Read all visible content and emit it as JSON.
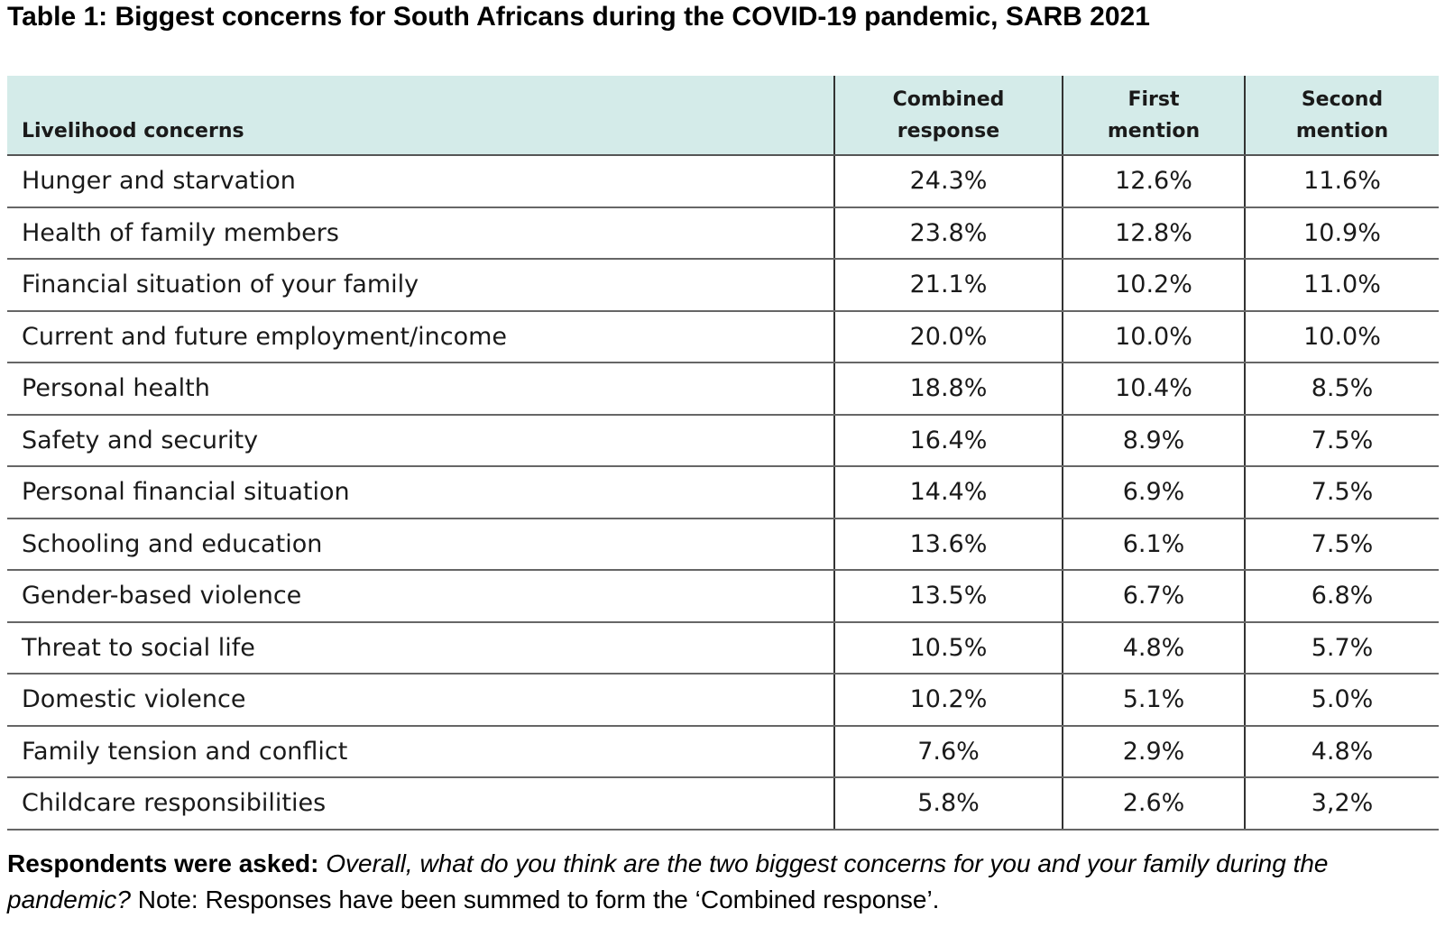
{
  "title": "Table 1: Biggest concerns for South Africans during the COVID-19 pandemic, SARB 2021",
  "table": {
    "headers": [
      {
        "line1": "",
        "line2": "Livelihood concerns"
      },
      {
        "line1": "Combined",
        "line2": "response"
      },
      {
        "line1": "First",
        "line2": "mention"
      },
      {
        "line1": "Second",
        "line2": "mention"
      }
    ],
    "rows": [
      {
        "concern": "Hunger and starvation",
        "combined": "24.3%",
        "first": "12.6%",
        "second": "11.6%"
      },
      {
        "concern": "Health of family members",
        "combined": "23.8%",
        "first": "12.8%",
        "second": "10.9%"
      },
      {
        "concern": "Financial situation of your family",
        "combined": "21.1%",
        "first": "10.2%",
        "second": "11.0%"
      },
      {
        "concern": "Current and future employment/income",
        "combined": "20.0%",
        "first": "10.0%",
        "second": "10.0%"
      },
      {
        "concern": "Personal health",
        "combined": "18.8%",
        "first": "10.4%",
        "second": "8.5%"
      },
      {
        "concern": "Safety and security",
        "combined": "16.4%",
        "first": "8.9%",
        "second": "7.5%"
      },
      {
        "concern": "Personal financial situation",
        "combined": "14.4%",
        "first": "6.9%",
        "second": "7.5%"
      },
      {
        "concern": "Schooling and education",
        "combined": "13.6%",
        "first": "6.1%",
        "second": "7.5%"
      },
      {
        "concern": "Gender-based violence",
        "combined": "13.5%",
        "first": "6.7%",
        "second": "6.8%"
      },
      {
        "concern": "Threat to social life",
        "combined": "10.5%",
        "first": "4.8%",
        "second": "5.7%"
      },
      {
        "concern": "Domestic violence",
        "combined": "10.2%",
        "first": "5.1%",
        "second": "5.0%"
      },
      {
        "concern": "Family tension and conflict",
        "combined": "7.6%",
        "first": "2.9%",
        "second": "4.8%"
      },
      {
        "concern": "Childcare responsibilities",
        "combined": "5.8%",
        "first": "2.6%",
        "second": "3,2%"
      }
    ]
  },
  "note": {
    "lead": "Respondents were asked:",
    "question": "Overall, what do you think are the two biggest concerns for you and your family during the pandemic?",
    "text": "Note: Responses have been summed to form the ‘Combined response’."
  },
  "colors": {
    "header_background": "#d4ebe9",
    "rule": "#555555"
  }
}
